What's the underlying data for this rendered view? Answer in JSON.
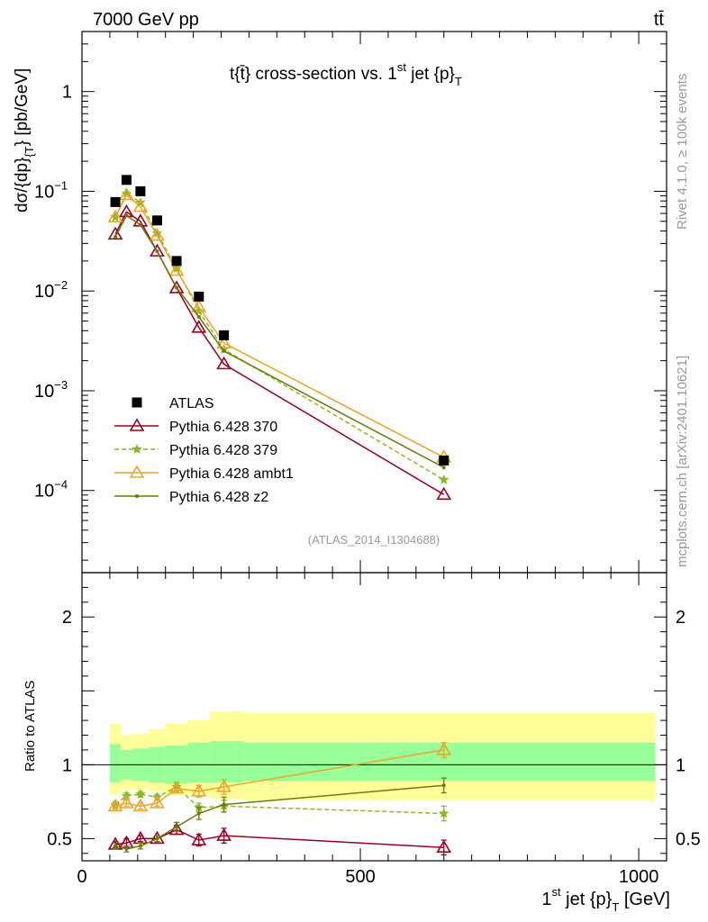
{
  "header": {
    "left": "7000 GeV pp",
    "right": "tt̄",
    "side_top": "Rivet 4.1.0, ≥ 100k events",
    "side_bottom": "mcplots.cern.ch [arXiv:2401.10621]"
  },
  "chart_data": {
    "type": "line",
    "title": "t{t̄} cross-section vs. 1st jet {p}T",
    "title_main": "t{t̄} cross-section vs. 1",
    "title_sup": "st",
    "title_tail": " jet {p}",
    "title_sub": "T",
    "ylabel": "dσ/{dp}{T} [pb/GeV]",
    "ylabel_main": "dσ/{dp}",
    "ylabel_sub": "{T",
    "ylabel_tail": "} [pb/GeV]",
    "ratio_ylabel": "Ratio to ATLAS",
    "xlabel": "1st jet {p}T [GeV]",
    "xlabel_main": "1",
    "xlabel_sup": "st",
    "xlabel_mid": " jet {p}",
    "xlabel_sub": "T",
    "xlabel_tail": " [GeV]",
    "analysis_tag": "(ATLAS_2014_I1304688)",
    "xlim": [
      0,
      1050
    ],
    "ylim": [
      1.5e-05,
      4
    ],
    "ratio_ylim": [
      0.35,
      2.3
    ],
    "x_ticks": [
      0,
      500,
      1000
    ],
    "x_tick_labels": [
      "0",
      "500",
      "1000"
    ],
    "y_ticks": [
      0.0001,
      0.001,
      0.01,
      0.1,
      1
    ],
    "y_tick_labels": [
      {
        "base": "10",
        "exp": "−4"
      },
      {
        "base": "10",
        "exp": "−3"
      },
      {
        "base": "10",
        "exp": "−2"
      },
      {
        "base": "10",
        "exp": "−1"
      },
      {
        "base": "1",
        "exp": ""
      }
    ],
    "ratio_y_ticks": [
      0.5,
      1,
      2
    ],
    "ratio_y_tick_labels": [
      "0.5",
      "1",
      "2"
    ],
    "bins": [
      {
        "lo": 50,
        "hi": 70,
        "band1_lo": 0.88,
        "band1_hi": 1.14,
        "band2_lo": 0.8,
        "band2_hi": 1.28
      },
      {
        "lo": 70,
        "hi": 90,
        "band1_lo": 0.9,
        "band1_hi": 1.1,
        "band2_lo": 0.83,
        "band2_hi": 1.2
      },
      {
        "lo": 90,
        "hi": 120,
        "band1_lo": 0.89,
        "band1_hi": 1.11,
        "band2_lo": 0.83,
        "band2_hi": 1.21
      },
      {
        "lo": 120,
        "hi": 150,
        "band1_lo": 0.88,
        "band1_hi": 1.12,
        "band2_lo": 0.82,
        "band2_hi": 1.24
      },
      {
        "lo": 150,
        "hi": 190,
        "band1_lo": 0.87,
        "band1_hi": 1.13,
        "band2_lo": 0.79,
        "band2_hi": 1.28
      },
      {
        "lo": 190,
        "hi": 230,
        "band1_lo": 0.88,
        "band1_hi": 1.15,
        "band2_lo": 0.79,
        "band2_hi": 1.3
      },
      {
        "lo": 230,
        "hi": 290,
        "band1_lo": 0.88,
        "band1_hi": 1.16,
        "band2_lo": 0.77,
        "band2_hi": 1.36
      },
      {
        "lo": 290,
        "hi": 1030,
        "band1_lo": 0.89,
        "band1_hi": 1.15,
        "band2_lo": 0.76,
        "band2_hi": 1.35
      }
    ],
    "x": [
      60,
      80,
      105,
      135,
      170,
      210,
      255,
      650
    ],
    "data": {
      "name": "ATLAS",
      "color": "#000000",
      "values": [
        0.078,
        0.13,
        0.1,
        0.051,
        0.02,
        0.0088,
        0.0036,
        0.0002
      ]
    },
    "series": [
      {
        "name": "Pythia 6.428 370",
        "color": "#990022",
        "marker": "triangle-open",
        "dashed": false,
        "values": [
          0.037,
          0.062,
          0.05,
          0.025,
          0.0107,
          0.0043,
          0.00185,
          9.1e-05
        ],
        "ratio": [
          0.46,
          0.47,
          0.5,
          0.5,
          0.56,
          0.49,
          0.52,
          0.44
        ],
        "ratio_err": [
          0.02,
          0.03,
          0.02,
          0.02,
          0.03,
          0.04,
          0.05,
          0.05
        ]
      },
      {
        "name": "Pythia 6.428 379",
        "color": "#88bb22",
        "marker": "star",
        "dashed": true,
        "values": [
          0.055,
          0.095,
          0.077,
          0.038,
          0.0168,
          0.0063,
          0.0026,
          0.000128
        ],
        "ratio": [
          0.73,
          0.79,
          0.8,
          0.78,
          0.85,
          0.71,
          0.72,
          0.67
        ],
        "ratio_err": [
          0.02,
          0.02,
          0.02,
          0.02,
          0.03,
          0.03,
          0.04,
          0.05
        ]
      },
      {
        "name": "Pythia 6.428 ambt1",
        "color": "#eea42a",
        "marker": "triangle-open",
        "dashed": false,
        "values": [
          0.055,
          0.092,
          0.07,
          0.036,
          0.016,
          0.0069,
          0.003,
          0.000215
        ],
        "ratio": [
          0.72,
          0.74,
          0.72,
          0.74,
          0.84,
          0.82,
          0.85,
          1.1
        ],
        "ratio_err": [
          0.02,
          0.02,
          0.02,
          0.02,
          0.03,
          0.04,
          0.05,
          0.05
        ]
      },
      {
        "name": "Pythia 6.428 z2",
        "color": "#6b7a0c",
        "marker": "dot",
        "dashed": false,
        "values": [
          0.035,
          0.057,
          0.046,
          0.025,
          0.0108,
          0.0055,
          0.0025,
          0.00017
        ],
        "ratio": [
          0.45,
          0.43,
          0.45,
          0.5,
          0.58,
          0.67,
          0.73,
          0.86
        ],
        "ratio_err": [
          0.02,
          0.02,
          0.02,
          0.02,
          0.03,
          0.04,
          0.05,
          0.05
        ]
      }
    ]
  }
}
